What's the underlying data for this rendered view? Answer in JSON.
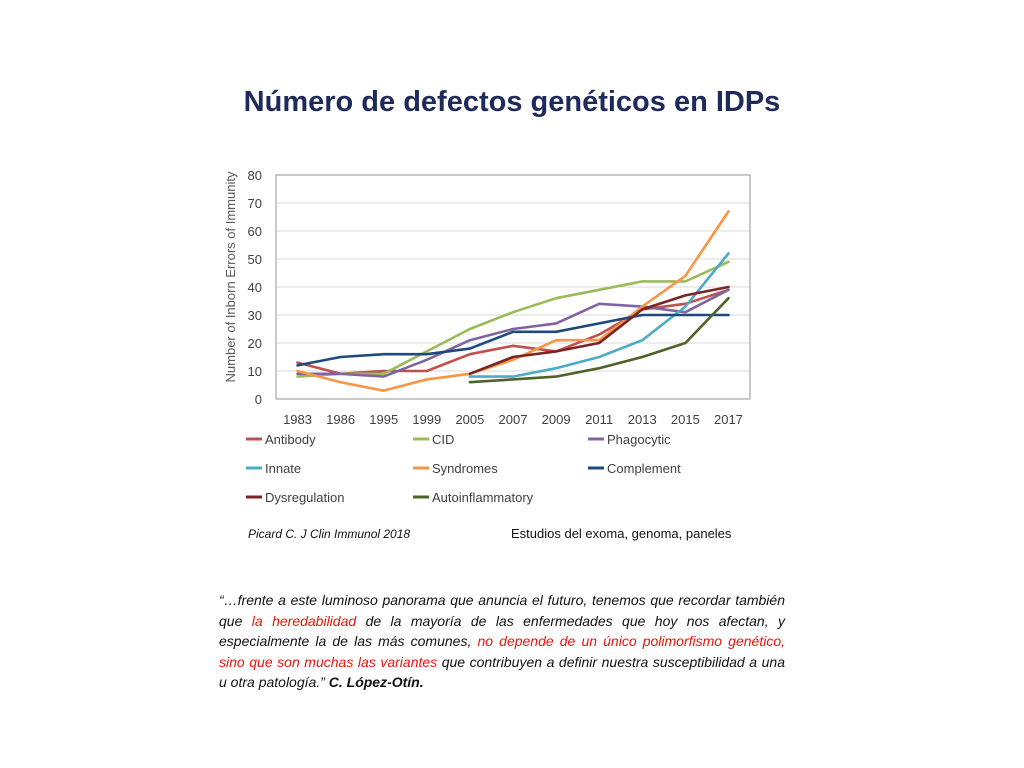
{
  "slide": {
    "title": "Número de defectos genéticos en IDPs",
    "citation": "Picard C. J Clin Immunol 2018",
    "note": "Estudios del exoma, genoma, paneles",
    "quote": {
      "segments": [
        {
          "text": "“…frente a este luminoso panorama que anuncia el futuro, tenemos que recordar también que ",
          "style": "normal"
        },
        {
          "text": "la heredabilidad",
          "style": "red"
        },
        {
          "text": " de la mayoría de las enfermedades que hoy nos afectan, y especialmente la de las más comunes, ",
          "style": "normal"
        },
        {
          "text": "no depende de un único polimorfismo genético, sino que son muchas las variantes",
          "style": "red"
        },
        {
          "text": " que contribuyen a definir nuestra susceptibilidad a una u otra patología.”  ",
          "style": "normal"
        },
        {
          "text": "C. López-Otín.",
          "style": "bold"
        }
      ]
    }
  },
  "chart_data": {
    "type": "line",
    "title": "",
    "xlabel": "",
    "ylabel": "Number of Inborn Errors of Immunity",
    "ylim": [
      0,
      80
    ],
    "yticks": [
      0,
      10,
      20,
      30,
      40,
      50,
      60,
      70,
      80
    ],
    "grid": true,
    "legend_position": "bottom",
    "categories": [
      "1983",
      "1986",
      "1995",
      "1999",
      "2005",
      "2007",
      "2009",
      "2011",
      "2013",
      "2015",
      "2017"
    ],
    "series": [
      {
        "name": "Antibody",
        "color": "#c0504d",
        "values": [
          13,
          9,
          10,
          10,
          16,
          19,
          17,
          23,
          32,
          34,
          39
        ]
      },
      {
        "name": "CID",
        "color": "#9bbb59",
        "values": [
          8,
          9,
          9,
          17,
          25,
          31,
          36,
          39,
          42,
          42,
          49
        ]
      },
      {
        "name": "Phagocytic",
        "color": "#8064a2",
        "values": [
          9,
          9,
          8,
          14,
          21,
          25,
          27,
          34,
          33,
          31,
          39
        ]
      },
      {
        "name": "Innate",
        "color": "#4bacc6",
        "values": [
          null,
          null,
          null,
          null,
          8,
          8,
          11,
          15,
          21,
          33,
          52
        ]
      },
      {
        "name": "Syndromes",
        "color": "#f79646",
        "values": [
          10,
          6,
          3,
          7,
          9,
          14,
          21,
          21,
          33,
          44,
          67
        ]
      },
      {
        "name": "Complement",
        "color": "#1f497d",
        "values": [
          12,
          15,
          16,
          16,
          18,
          24,
          24,
          27,
          30,
          30,
          30
        ]
      },
      {
        "name": "Dysregulation",
        "color": "#7b2424",
        "values": [
          null,
          null,
          null,
          null,
          9,
          15,
          17,
          20,
          32,
          37,
          40
        ]
      },
      {
        "name": "Autoinflammatory",
        "color": "#4f6228",
        "values": [
          null,
          null,
          null,
          null,
          6,
          7,
          8,
          11,
          15,
          20,
          36
        ]
      }
    ]
  }
}
